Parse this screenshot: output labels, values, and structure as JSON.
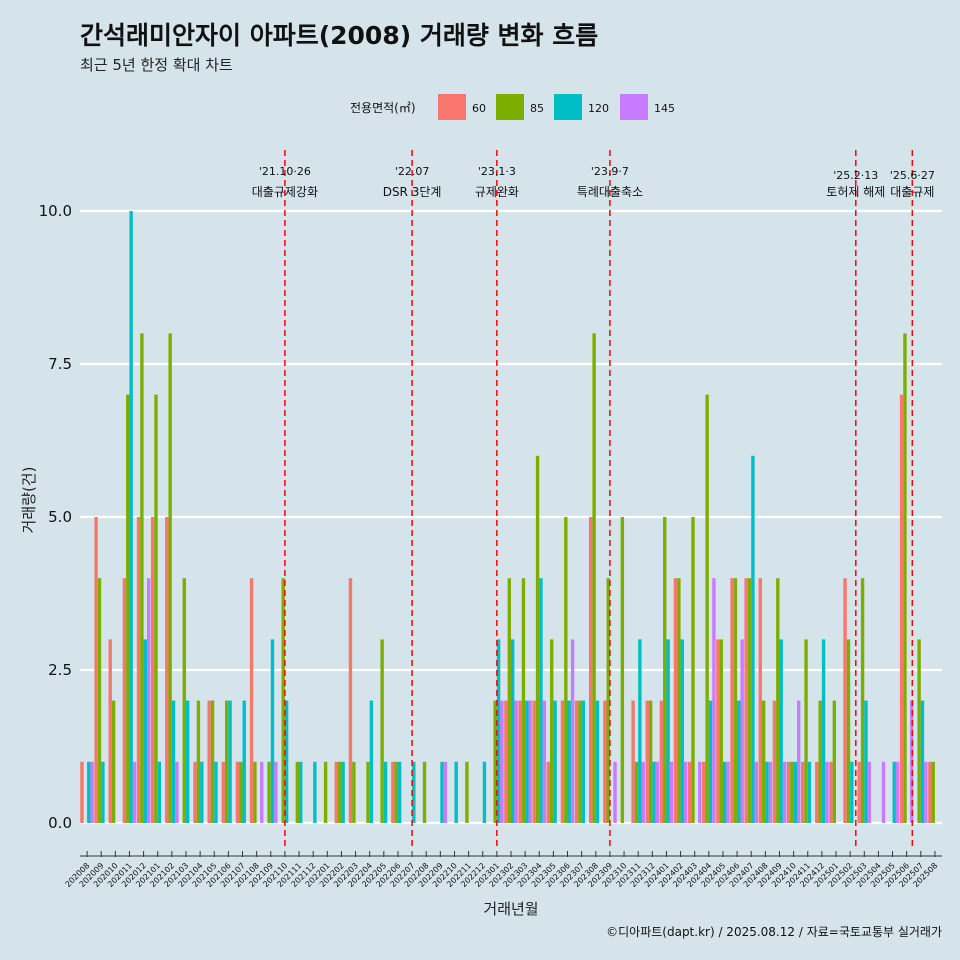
{
  "chart_data": {
    "type": "bar",
    "title": "간석래미안자이 아파트(2008) 거래량 변화 흐름",
    "subtitle": "최근 5년 한정 확대 차트",
    "xlabel": "거래년월",
    "ylabel": "거래량(건)",
    "caption": "©디아파트(dapt.kr) / 2025.08.12 / 자료=국토교통부 실거래가",
    "ylim": [
      -0.5,
      11
    ],
    "yticks": [
      "0.0",
      "2.5",
      "5.0",
      "7.5",
      "10.0"
    ],
    "ytick_values": [
      0,
      2.5,
      5,
      7.5,
      10
    ],
    "legend": {
      "title": "전용면적(㎡)",
      "position": "top"
    },
    "categories": [
      "202008",
      "202009",
      "202010",
      "202011",
      "202012",
      "202101",
      "202102",
      "202103",
      "202104",
      "202105",
      "202106",
      "202107",
      "202108",
      "202109",
      "202110",
      "202111",
      "202112",
      "202201",
      "202202",
      "202203",
      "202204",
      "202205",
      "202206",
      "202207",
      "202208",
      "202209",
      "202210",
      "202211",
      "202212",
      "202301",
      "202302",
      "202303",
      "202304",
      "202305",
      "202306",
      "202307",
      "202308",
      "202309",
      "202310",
      "202311",
      "202312",
      "202401",
      "202402",
      "202403",
      "202404",
      "202405",
      "202406",
      "202407",
      "202408",
      "202409",
      "202410",
      "202411",
      "202412",
      "202501",
      "202502",
      "202503",
      "202504",
      "202505",
      "202506",
      "202507",
      "202508"
    ],
    "series": [
      {
        "name": "60",
        "color": "#F8766D",
        "values": [
          1,
          5,
          3,
          4,
          5,
          5,
          5,
          0,
          1,
          2,
          1,
          1,
          4,
          0,
          0,
          0,
          0,
          0,
          1,
          4,
          0,
          0,
          1,
          0,
          0,
          0,
          0,
          0,
          0,
          0,
          2,
          2,
          2,
          1,
          2,
          2,
          5,
          2,
          0,
          2,
          2,
          2,
          4,
          1,
          1,
          3,
          4,
          4,
          4,
          2,
          1,
          1,
          1,
          1,
          4,
          1,
          0,
          0,
          7,
          0,
          1
        ]
      },
      {
        "name": "85",
        "color": "#7CAE00",
        "values": [
          0,
          4,
          2,
          7,
          8,
          7,
          8,
          4,
          2,
          2,
          2,
          1,
          1,
          1,
          4,
          1,
          0,
          1,
          1,
          1,
          1,
          3,
          1,
          0,
          1,
          0,
          0,
          1,
          0,
          2,
          4,
          4,
          6,
          3,
          5,
          2,
          8,
          4,
          5,
          1,
          2,
          5,
          4,
          5,
          7,
          3,
          4,
          4,
          2,
          4,
          1,
          3,
          2,
          2,
          3,
          4,
          0,
          0,
          8,
          3,
          1
        ]
      },
      {
        "name": "120",
        "color": "#00BFC4",
        "values": [
          1,
          1,
          0,
          10,
          3,
          1,
          2,
          2,
          1,
          1,
          2,
          2,
          0,
          3,
          2,
          1,
          1,
          0,
          1,
          0,
          2,
          1,
          1,
          1,
          0,
          1,
          1,
          0,
          1,
          3,
          3,
          2,
          4,
          2,
          2,
          2,
          2,
          0,
          0,
          3,
          1,
          3,
          3,
          0,
          2,
          1,
          2,
          6,
          1,
          3,
          1,
          1,
          3,
          0,
          1,
          2,
          0,
          1,
          0,
          2,
          0
        ]
      },
      {
        "name": "145",
        "color": "#C77CFF",
        "values": [
          1,
          0,
          0,
          1,
          4,
          0,
          1,
          0,
          0,
          0,
          0,
          0,
          1,
          1,
          0,
          0,
          0,
          0,
          0,
          0,
          0,
          0,
          0,
          0,
          0,
          1,
          0,
          0,
          0,
          2,
          2,
          2,
          2,
          0,
          3,
          0,
          0,
          1,
          0,
          1,
          1,
          1,
          1,
          1,
          4,
          1,
          3,
          1,
          1,
          1,
          2,
          0,
          1,
          0,
          0,
          1,
          1,
          1,
          2,
          1,
          0
        ]
      }
    ],
    "events": [
      {
        "date": "'21.10·26",
        "label": "대출규제강화",
        "index": 14.0
      },
      {
        "date": "'22.07",
        "label": "DSR 3단계",
        "index": 23.0
      },
      {
        "date": "'23.1·3",
        "label": "규제완화",
        "index": 29.0
      },
      {
        "date": "'23.9·7",
        "label": "특례대출축소",
        "index": 37.0
      },
      {
        "date": "'25.2·13",
        "label": "토허제 해제",
        "index": 54.4
      },
      {
        "date": "'25.6·27",
        "label": "대출규제",
        "index": 58.4
      }
    ]
  }
}
